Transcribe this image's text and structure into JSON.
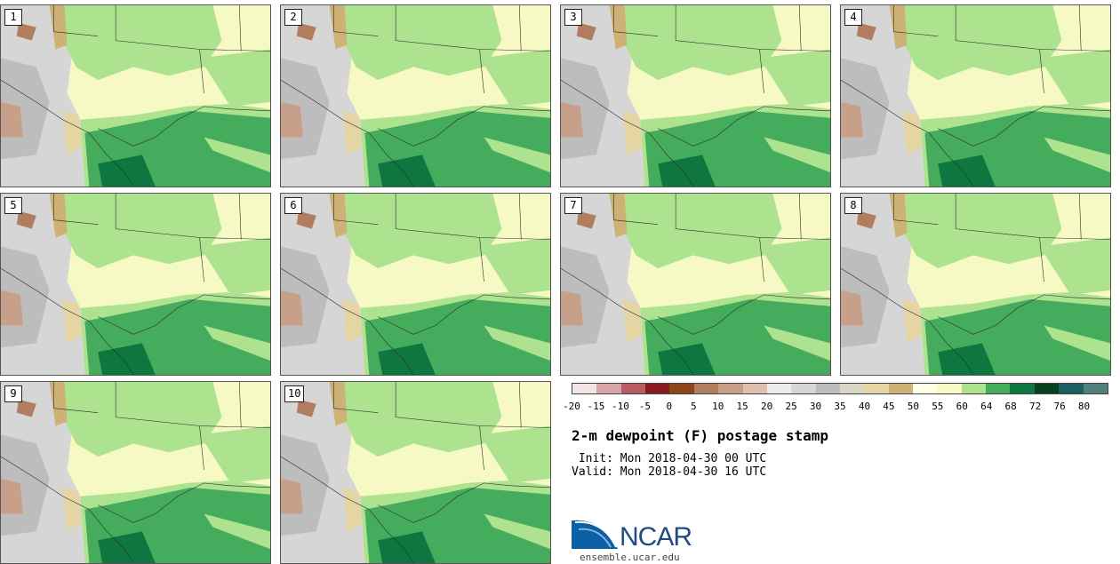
{
  "panels": [
    {
      "label": "1"
    },
    {
      "label": "2"
    },
    {
      "label": "3"
    },
    {
      "label": "4"
    },
    {
      "label": "5"
    },
    {
      "label": "6"
    },
    {
      "label": "7"
    },
    {
      "label": "8"
    },
    {
      "label": "9"
    },
    {
      "label": "10"
    }
  ],
  "colorbar": {
    "colors": [
      "#f3e4e6",
      "#d8a5a7",
      "#b55d63",
      "#8a1a22",
      "#8b4518",
      "#b07e5e",
      "#c89f88",
      "#dec0b0",
      "#ececec",
      "#d6d6d6",
      "#bdbdbd",
      "#dad6c6",
      "#e4d5a3",
      "#ceb174",
      "#fffee6",
      "#f7f9c4",
      "#ade28f",
      "#46ac5d",
      "#0e7740",
      "#073f20",
      "#1c5f62",
      "#52807d"
    ],
    "ticks": [
      "-20",
      "-15",
      "-10",
      "-5",
      "0",
      "5",
      "10",
      "15",
      "20",
      "25",
      "30",
      "35",
      "40",
      "45",
      "50",
      "55",
      "60",
      "64",
      "68",
      "72",
      "76",
      "80"
    ]
  },
  "title": "2-m dewpoint (F) postage stamp",
  "init": " Init: Mon 2018-04-30 00 UTC",
  "valid": "Valid: Mon 2018-04-30 16 UTC",
  "logo": {
    "text": "NCAR",
    "url": "ensemble.ucar.edu"
  }
}
